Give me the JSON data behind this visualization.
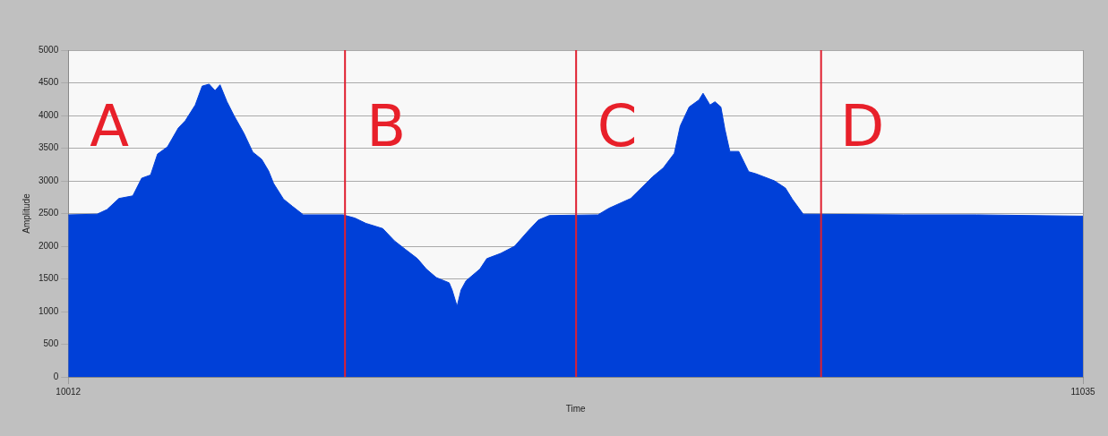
{
  "chart_data": {
    "type": "area",
    "xlabel": "Time",
    "ylabel": "Amplitude",
    "xlim": [
      10012,
      11035
    ],
    "xticks": [
      10012,
      11035
    ],
    "ylim": [
      0,
      5000
    ],
    "yticks": [
      0,
      500,
      1000,
      1500,
      2000,
      2500,
      3000,
      3500,
      4000,
      4500,
      5000
    ],
    "grid": true,
    "legend": false,
    "series": [
      {
        "color": "#0040d8",
        "x": [
          10012,
          10041,
          10051,
          10063,
          10077,
          10086,
          10095,
          10102,
          10112,
          10123,
          10130,
          10140,
          10147,
          10154,
          10160,
          10165,
          10172,
          10179,
          10189,
          10198,
          10207,
          10214,
          10219,
          10229,
          10238,
          10249,
          10289,
          10301,
          10312,
          10329,
          10341,
          10352,
          10364,
          10373,
          10383,
          10396,
          10399,
          10404,
          10408,
          10413,
          10427,
          10434,
          10448,
          10462,
          10476,
          10486,
          10497,
          10546,
          10557,
          10579,
          10601,
          10612,
          10623,
          10629,
          10638,
          10648,
          10652,
          10659,
          10664,
          10670,
          10674,
          10679,
          10688,
          10698,
          10705,
          10724,
          10735,
          10742,
          10753,
          10854,
          10928,
          11035
        ],
        "values": [
          2480,
          2490,
          2560,
          2730,
          2770,
          3040,
          3090,
          3410,
          3520,
          3810,
          3920,
          4160,
          4450,
          4480,
          4380,
          4470,
          4210,
          4000,
          3730,
          3440,
          3330,
          3150,
          2960,
          2720,
          2610,
          2480,
          2480,
          2430,
          2350,
          2270,
          2080,
          1950,
          1810,
          1650,
          1520,
          1440,
          1330,
          1080,
          1330,
          1470,
          1650,
          1810,
          1890,
          2000,
          2240,
          2400,
          2470,
          2480,
          2580,
          2730,
          3060,
          3200,
          3420,
          3840,
          4130,
          4240,
          4340,
          4160,
          4210,
          4130,
          3790,
          3450,
          3450,
          3140,
          3110,
          3000,
          2890,
          2720,
          2490,
          2480,
          2480,
          2460
        ]
      }
    ],
    "ref_lines": [
      {
        "axis": "x",
        "value": 10291,
        "color": "#e02030"
      },
      {
        "axis": "x",
        "value": 10524,
        "color": "#e02030"
      },
      {
        "axis": "x",
        "value": 10771,
        "color": "#e02030"
      }
    ],
    "annotations": [
      "A",
      "B",
      "C",
      "D"
    ]
  }
}
